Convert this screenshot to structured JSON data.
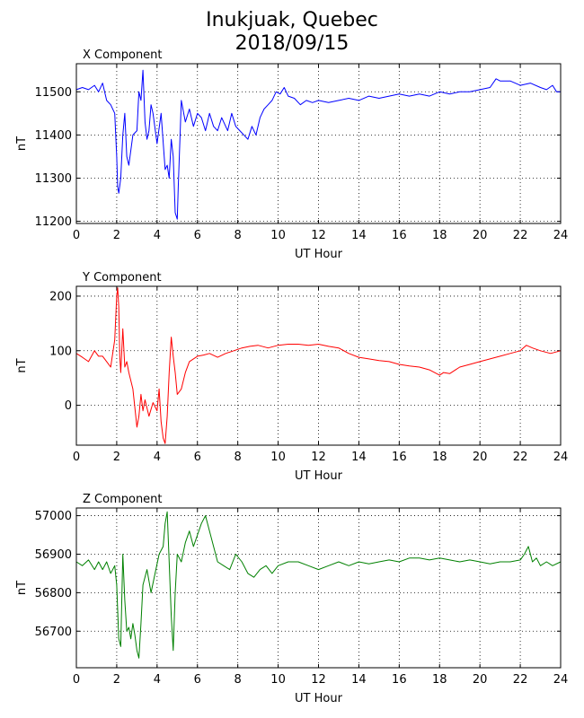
{
  "title": {
    "line1": "Inukjuak, Quebec",
    "line2": "2018/09/15"
  },
  "chart_data": [
    {
      "type": "line",
      "title": "X Component",
      "xlabel": "UT Hour",
      "ylabel": "nT",
      "xlim": [
        0,
        24
      ],
      "ylim": [
        11195,
        11565
      ],
      "xticks": [
        "0",
        "2",
        "4",
        "6",
        "8",
        "10",
        "12",
        "14",
        "16",
        "18",
        "20",
        "22",
        "24"
      ],
      "yticks": [
        "11200",
        "11300",
        "11400",
        "11500"
      ],
      "grid": true,
      "color": "#0000ff",
      "series": [
        {
          "x": [
            0,
            0.3,
            0.6,
            0.9,
            1.1,
            1.3,
            1.5,
            1.7,
            1.9,
            2.0,
            2.05,
            2.1,
            2.2,
            2.3,
            2.4,
            2.5,
            2.6,
            2.8,
            3.0,
            3.1,
            3.2,
            3.3,
            3.4,
            3.5,
            3.6,
            3.7,
            3.8,
            4.0,
            4.2,
            4.4,
            4.5,
            4.6,
            4.7,
            4.8,
            4.9,
            5.0,
            5.05,
            5.2,
            5.4,
            5.6,
            5.8,
            6.0,
            6.2,
            6.4,
            6.6,
            6.8,
            7.0,
            7.2,
            7.5,
            7.7,
            7.9,
            8.1,
            8.3,
            8.5,
            8.7,
            8.9,
            9.1,
            9.3,
            9.5,
            9.7,
            9.9,
            10.1,
            10.3,
            10.5,
            10.8,
            11.1,
            11.4,
            11.7,
            12.0,
            12.5,
            13.0,
            13.5,
            14.0,
            14.5,
            15.0,
            15.5,
            16.0,
            16.5,
            17.0,
            17.5,
            18.0,
            18.5,
            19.0,
            19.5,
            20.0,
            20.5,
            20.8,
            21.0,
            21.5,
            22.0,
            22.5,
            23.0,
            23.3,
            23.6,
            23.8,
            24.0
          ],
          "y": [
            11505,
            11510,
            11505,
            11515,
            11500,
            11520,
            11480,
            11470,
            11450,
            11350,
            11280,
            11265,
            11300,
            11400,
            11450,
            11350,
            11330,
            11400,
            11410,
            11500,
            11480,
            11550,
            11430,
            11390,
            11410,
            11470,
            11450,
            11380,
            11450,
            11320,
            11330,
            11300,
            11390,
            11350,
            11220,
            11205,
            11280,
            11480,
            11430,
            11460,
            11420,
            11450,
            11440,
            11410,
            11450,
            11420,
            11410,
            11440,
            11410,
            11450,
            11420,
            11410,
            11400,
            11390,
            11420,
            11400,
            11440,
            11460,
            11470,
            11480,
            11500,
            11495,
            11510,
            11490,
            11485,
            11470,
            11480,
            11475,
            11480,
            11475,
            11480,
            11485,
            11480,
            11490,
            11485,
            11490,
            11495,
            11490,
            11495,
            11490,
            11500,
            11495,
            11500,
            11500,
            11505,
            11510,
            11530,
            11525,
            11525,
            11515,
            11520,
            11510,
            11505,
            11515,
            11500,
            11500
          ]
        }
      ]
    },
    {
      "type": "line",
      "title": "Y Component",
      "xlabel": "UT Hour",
      "ylabel": "nT",
      "xlim": [
        0,
        24
      ],
      "ylim": [
        -73,
        218
      ],
      "xticks": [
        "0",
        "2",
        "4",
        "6",
        "8",
        "10",
        "12",
        "14",
        "16",
        "18",
        "20",
        "22",
        "24"
      ],
      "yticks": [
        "0",
        "100",
        "200"
      ],
      "grid": true,
      "color": "#ff0000",
      "series": [
        {
          "x": [
            0,
            0.3,
            0.6,
            0.9,
            1.1,
            1.3,
            1.5,
            1.7,
            1.9,
            2.0,
            2.05,
            2.1,
            2.15,
            2.2,
            2.3,
            2.4,
            2.5,
            2.6,
            2.8,
            3.0,
            3.1,
            3.2,
            3.3,
            3.4,
            3.6,
            3.8,
            4.0,
            4.1,
            4.2,
            4.3,
            4.4,
            4.5,
            4.6,
            4.7,
            4.8,
            4.9,
            5.0,
            5.2,
            5.4,
            5.6,
            5.8,
            6.0,
            6.3,
            6.6,
            7.0,
            7.4,
            7.8,
            8.2,
            8.6,
            9.0,
            9.5,
            10.0,
            10.5,
            11.0,
            11.5,
            12.0,
            12.5,
            13.0,
            13.5,
            14.0,
            14.5,
            15.0,
            15.5,
            16.0,
            16.5,
            17.0,
            17.5,
            18.0,
            18.2,
            18.5,
            19.0,
            19.5,
            20.0,
            20.5,
            21.0,
            21.5,
            22.0,
            22.3,
            22.6,
            23.0,
            23.5,
            24.0
          ],
          "y": [
            95,
            88,
            80,
            100,
            90,
            90,
            80,
            70,
            120,
            200,
            215,
            180,
            90,
            60,
            140,
            70,
            80,
            60,
            30,
            -40,
            -20,
            20,
            -10,
            10,
            -20,
            5,
            -10,
            30,
            -30,
            -60,
            -70,
            -20,
            60,
            125,
            90,
            60,
            20,
            30,
            60,
            80,
            85,
            90,
            92,
            95,
            88,
            95,
            100,
            105,
            108,
            110,
            105,
            110,
            112,
            112,
            110,
            112,
            108,
            105,
            95,
            88,
            85,
            82,
            80,
            75,
            72,
            70,
            65,
            55,
            60,
            58,
            70,
            75,
            80,
            85,
            90,
            95,
            100,
            110,
            105,
            100,
            95,
            100
          ]
        }
      ]
    },
    {
      "type": "line",
      "title": "Z Component",
      "xlabel": "UT Hour",
      "ylabel": "nT",
      "xlim": [
        0,
        24
      ],
      "ylim": [
        56605,
        57020
      ],
      "xticks": [
        "0",
        "2",
        "4",
        "6",
        "8",
        "10",
        "12",
        "14",
        "16",
        "18",
        "20",
        "22",
        "24"
      ],
      "yticks": [
        "56700",
        "56800",
        "56900",
        "57000"
      ],
      "grid": true,
      "color": "#008000",
      "series": [
        {
          "x": [
            0,
            0.3,
            0.6,
            0.9,
            1.1,
            1.3,
            1.5,
            1.7,
            1.9,
            2.0,
            2.1,
            2.2,
            2.3,
            2.4,
            2.5,
            2.6,
            2.7,
            2.8,
            2.9,
            3.0,
            3.1,
            3.2,
            3.3,
            3.5,
            3.7,
            3.9,
            4.1,
            4.3,
            4.4,
            4.5,
            4.6,
            4.7,
            4.8,
            4.9,
            5.0,
            5.2,
            5.4,
            5.6,
            5.8,
            6.0,
            6.2,
            6.4,
            6.6,
            6.8,
            7.0,
            7.3,
            7.6,
            7.9,
            8.2,
            8.5,
            8.8,
            9.1,
            9.4,
            9.7,
            10.0,
            10.5,
            11.0,
            11.5,
            12.0,
            12.5,
            13.0,
            13.5,
            14.0,
            14.5,
            15.0,
            15.5,
            16.0,
            16.5,
            17.0,
            17.5,
            18.0,
            18.5,
            19.0,
            19.5,
            20.0,
            20.5,
            21.0,
            21.5,
            22.0,
            22.2,
            22.4,
            22.6,
            22.8,
            23.0,
            23.3,
            23.6,
            24.0
          ],
          "y": [
            56880,
            56870,
            56885,
            56860,
            56880,
            56860,
            56880,
            56850,
            56870,
            56820,
            56680,
            56660,
            56900,
            56780,
            56700,
            56710,
            56680,
            56720,
            56690,
            56650,
            56630,
            56720,
            56820,
            56860,
            56800,
            56850,
            56900,
            56920,
            56980,
            57010,
            56880,
            56740,
            56650,
            56800,
            56900,
            56880,
            56930,
            56960,
            56920,
            56950,
            56980,
            57000,
            56960,
            56920,
            56880,
            56870,
            56860,
            56900,
            56880,
            56850,
            56840,
            56860,
            56870,
            56850,
            56870,
            56880,
            56880,
            56870,
            56860,
            56870,
            56880,
            56870,
            56880,
            56875,
            56880,
            56885,
            56880,
            56890,
            56890,
            56885,
            56890,
            56885,
            56880,
            56885,
            56880,
            56875,
            56880,
            56880,
            56885,
            56900,
            56920,
            56880,
            56890,
            56870,
            56880,
            56870,
            56880
          ]
        }
      ]
    }
  ]
}
